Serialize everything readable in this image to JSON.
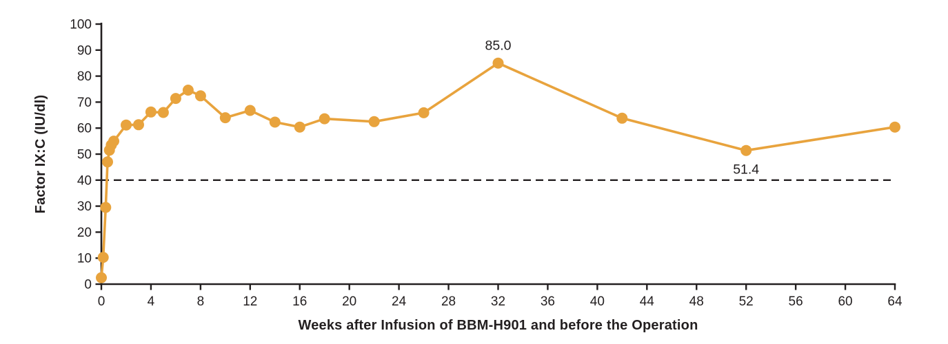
{
  "chart_data": {
    "type": "line",
    "title": "",
    "xlabel": "Weeks after Infusion of BBM-H901 and before the Operation",
    "ylabel": "Factor IX:C (IU/dl)",
    "xlim": [
      0,
      64
    ],
    "ylim": [
      0,
      100
    ],
    "x_ticks": [
      0,
      4,
      8,
      12,
      16,
      20,
      24,
      28,
      32,
      36,
      40,
      44,
      48,
      52,
      56,
      60,
      64
    ],
    "y_ticks": [
      0,
      10,
      20,
      30,
      40,
      50,
      60,
      70,
      80,
      90,
      100
    ],
    "grid": false,
    "legend": "none",
    "series": [
      {
        "name": "Factor IX:C",
        "color": "#E8A33D",
        "marker": "circle",
        "points": [
          [
            0,
            2.5
          ],
          [
            0.15,
            10.3
          ],
          [
            0.35,
            29.5
          ],
          [
            0.5,
            47.0
          ],
          [
            0.65,
            51.5
          ],
          [
            0.8,
            53.5
          ],
          [
            1,
            55.0
          ],
          [
            2,
            61.2
          ],
          [
            3,
            61.3
          ],
          [
            4,
            66.2
          ],
          [
            5,
            66.0
          ],
          [
            6,
            71.4
          ],
          [
            7,
            74.6
          ],
          [
            8,
            72.4
          ],
          [
            10,
            64.0
          ],
          [
            12,
            66.8
          ],
          [
            14,
            62.3
          ],
          [
            16,
            60.4
          ],
          [
            18,
            63.6
          ],
          [
            22,
            62.5
          ],
          [
            26,
            65.9
          ],
          [
            32,
            85.0
          ],
          [
            42,
            63.8
          ],
          [
            52,
            51.4
          ],
          [
            64,
            60.4
          ]
        ]
      }
    ],
    "threshold_line": {
      "y": 40,
      "style": "dashed",
      "color": "#231F20"
    },
    "annotations": [
      {
        "x": 32,
        "y": 85.0,
        "label": "85.0",
        "placement": "above"
      },
      {
        "x": 52,
        "y": 51.4,
        "label": "51.4",
        "placement": "below"
      }
    ]
  },
  "colors": {
    "series": "#E8A33D",
    "axis": "#231F20",
    "text": "#231F20",
    "background": "#ffffff"
  }
}
